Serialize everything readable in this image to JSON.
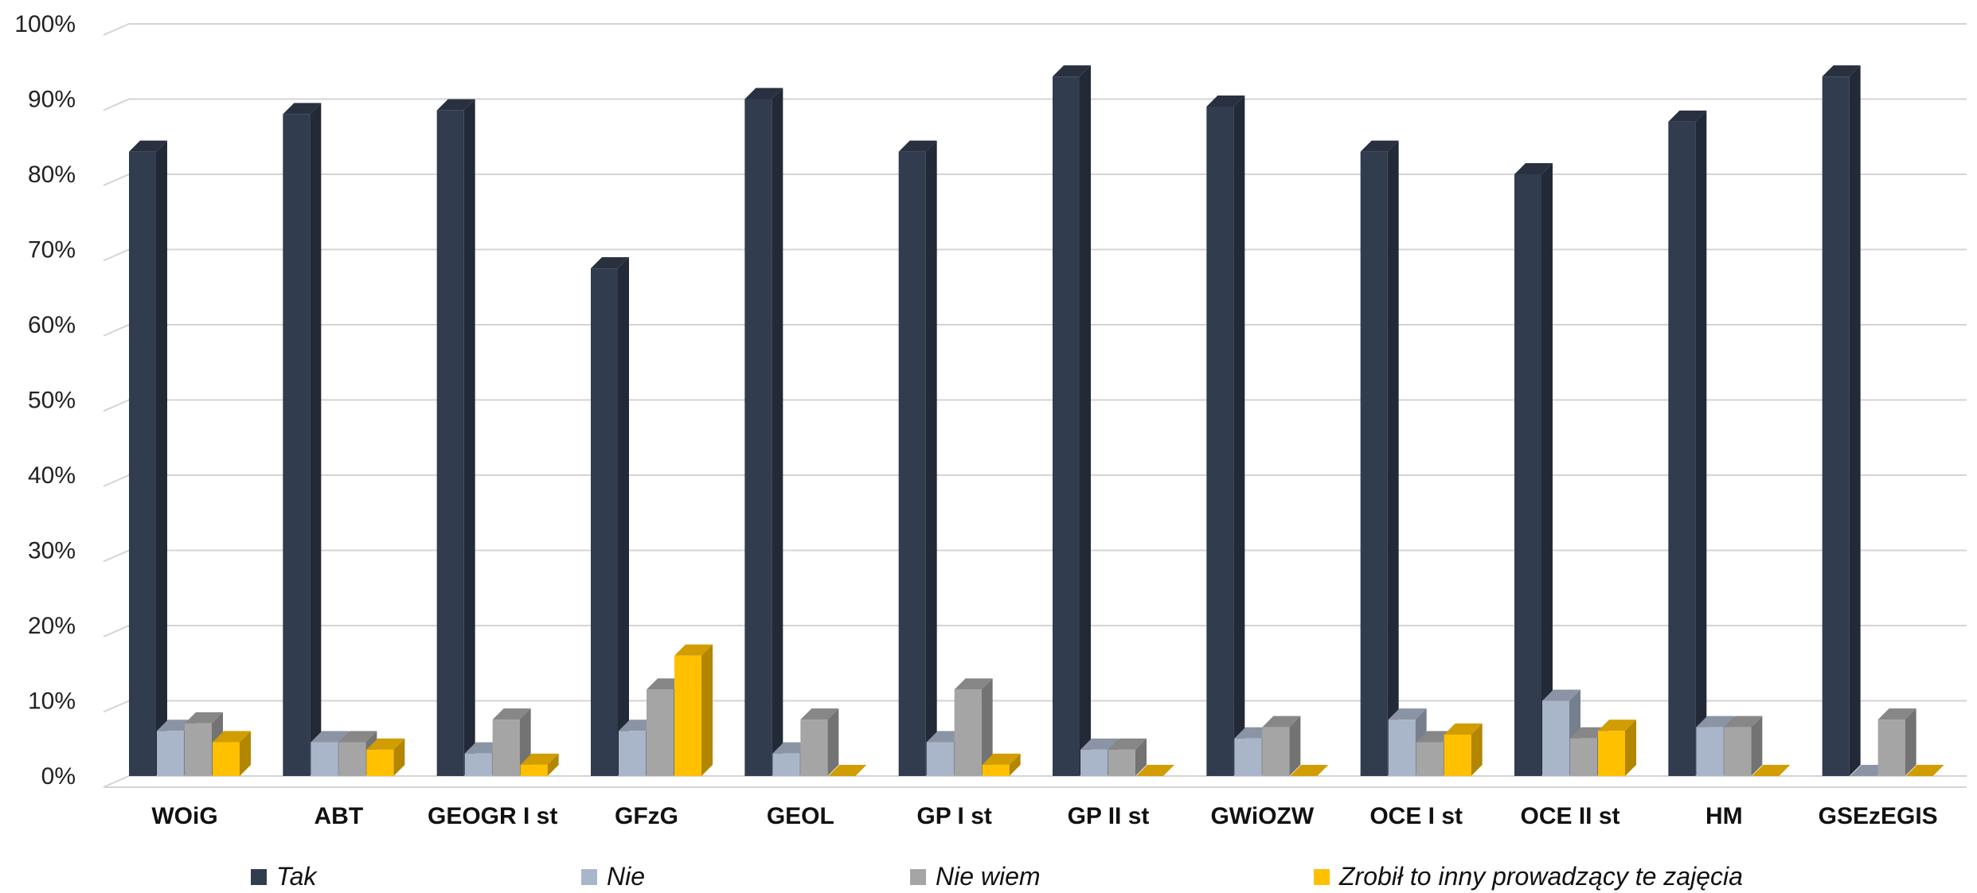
{
  "chart_data": {
    "type": "bar",
    "title": "",
    "xlabel": "",
    "ylabel": "",
    "ylim": [
      0,
      100
    ],
    "y_ticks": [
      "0%",
      "10%",
      "20%",
      "30%",
      "40%",
      "50%",
      "60%",
      "70%",
      "80%",
      "90%",
      "100%"
    ],
    "grid": true,
    "legend_position": "bottom",
    "categories": [
      "WOiG",
      "ABT",
      "GEOGR I st",
      "GFzG",
      "GEOL",
      "GP I st",
      "GP II st",
      "GWiOZW",
      "OCE I st",
      "OCE II st",
      "HM",
      "GSEzEGIS"
    ],
    "series": [
      {
        "name": "Tak",
        "color": "#323c4f",
        "values": [
          83,
          88,
          88.5,
          67.5,
          90,
          83,
          93,
          89,
          83,
          80,
          87,
          93
        ]
      },
      {
        "name": "Nie",
        "color": "#a9b5c9",
        "values": [
          6,
          4.5,
          3,
          6,
          3,
          4.5,
          3.5,
          5,
          7.5,
          10,
          6.5,
          0
        ]
      },
      {
        "name": "Nie wiem",
        "color": "#a5a5a5",
        "values": [
          7,
          4.5,
          7.5,
          11.5,
          7.5,
          11.5,
          3.5,
          6.5,
          4.5,
          5,
          6.5,
          7.5
        ]
      },
      {
        "name": "Zrobił to inny prowadzący te zajęcia",
        "color": "#ffc000",
        "values": [
          4.5,
          3.5,
          1.5,
          16,
          0,
          1.5,
          0,
          0,
          5.5,
          6,
          0,
          0
        ]
      }
    ]
  }
}
